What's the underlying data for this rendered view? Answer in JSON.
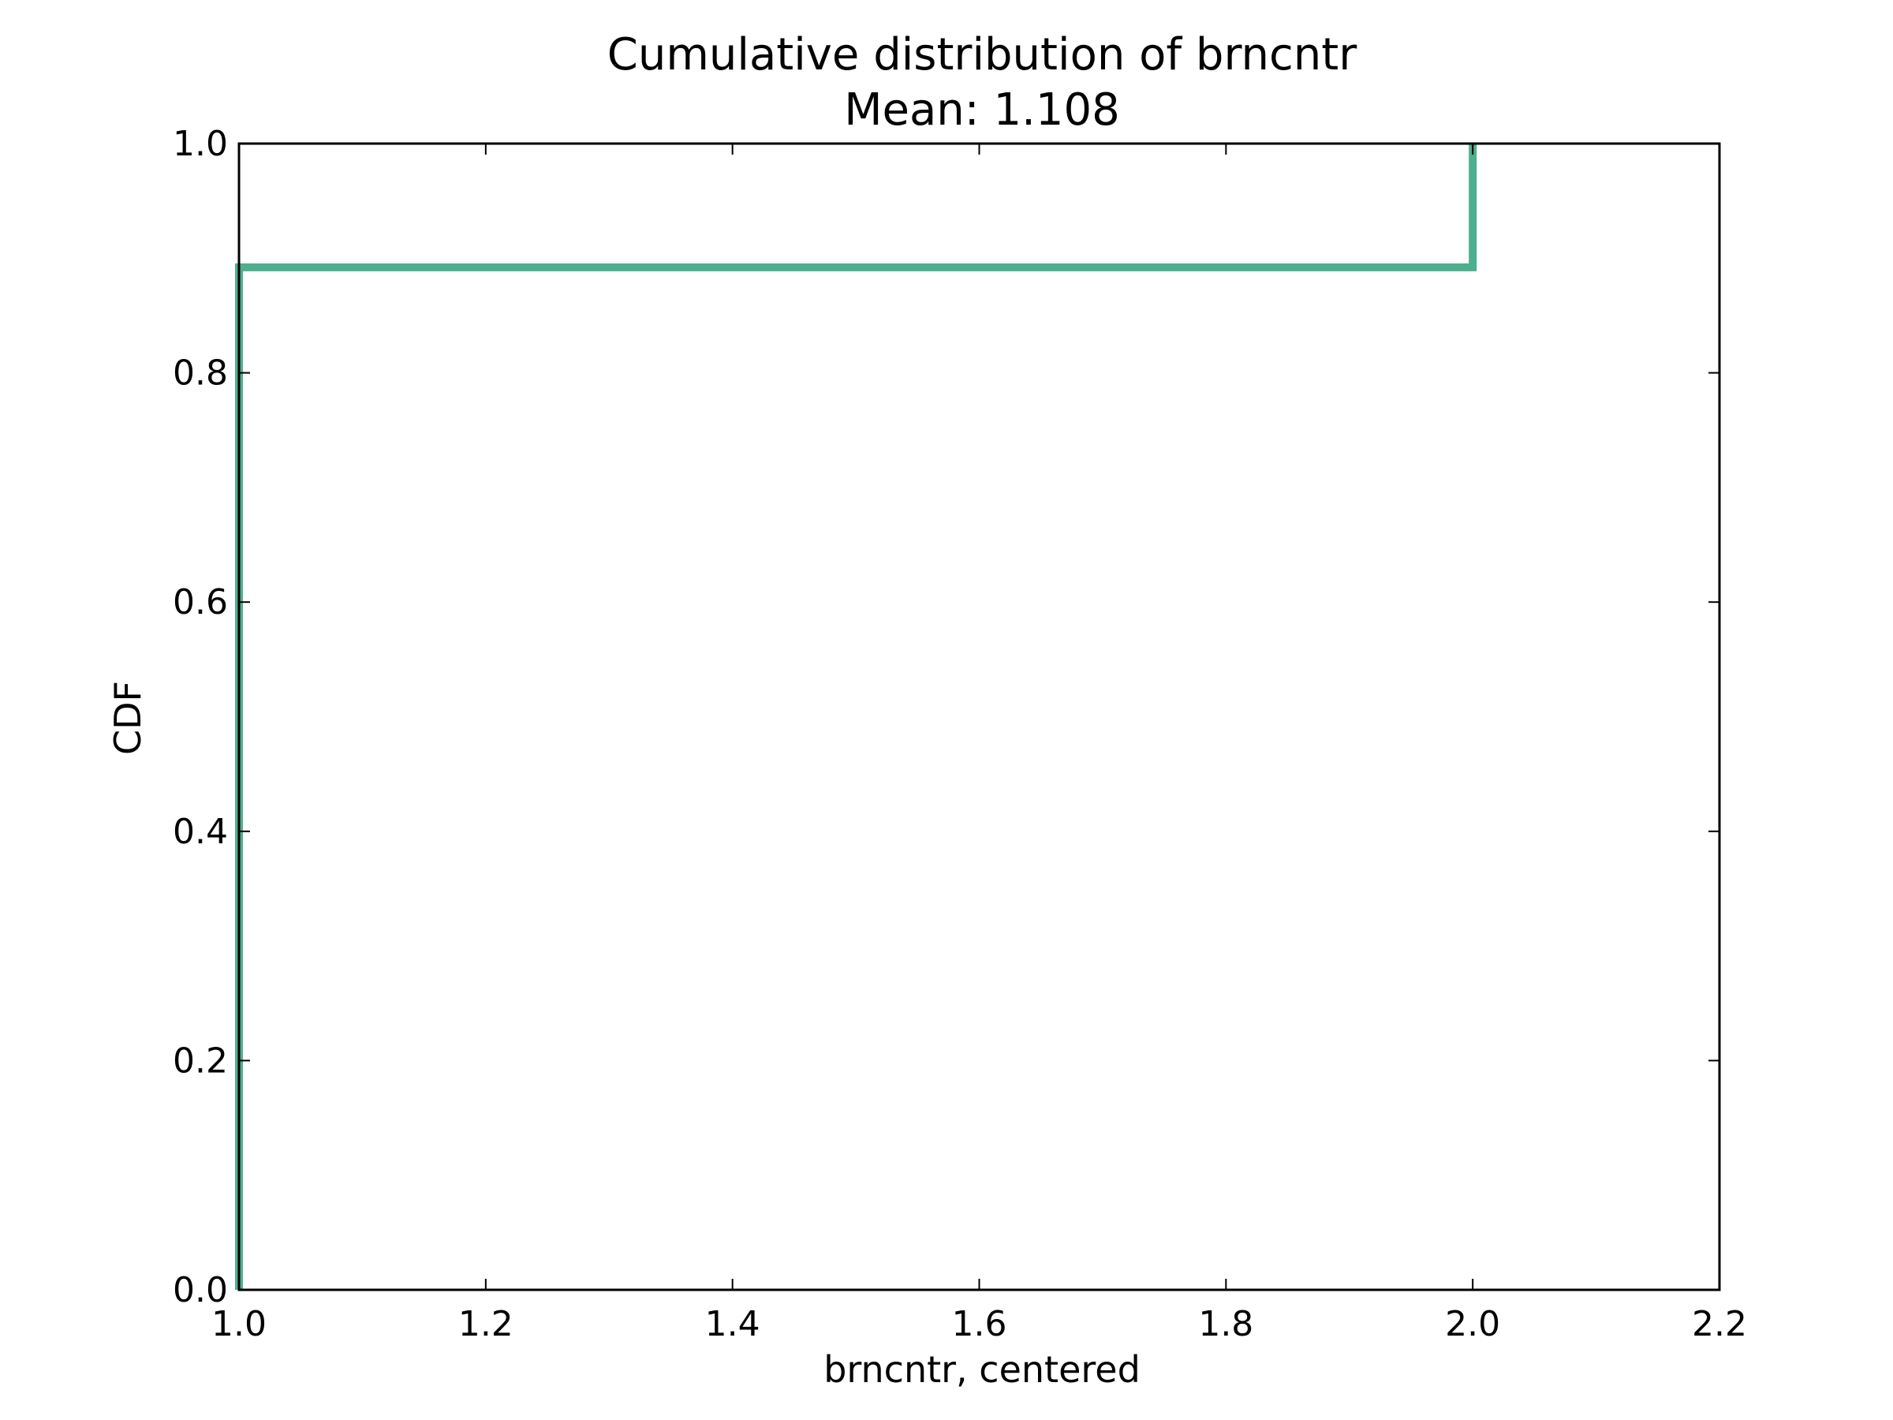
{
  "chart_data": {
    "type": "line",
    "step": true,
    "title": "Cumulative distribution of brncntr",
    "subtitle": "Mean: 1.108",
    "xlabel": "brncntr, centered",
    "ylabel": "CDF",
    "xlim": [
      1.0,
      2.2
    ],
    "ylim": [
      0.0,
      1.0
    ],
    "xticks": [
      "1.0",
      "1.2",
      "1.4",
      "1.6",
      "1.8",
      "2.0",
      "2.2"
    ],
    "yticks": [
      "0.0",
      "0.2",
      "0.4",
      "0.6",
      "0.8",
      "1.0"
    ],
    "grid": false,
    "series": [
      {
        "color": "#4daf8d",
        "x": [
          1.0,
          1.0,
          2.0,
          2.0
        ],
        "y": [
          0.0,
          0.892,
          0.892,
          1.0
        ]
      }
    ]
  }
}
